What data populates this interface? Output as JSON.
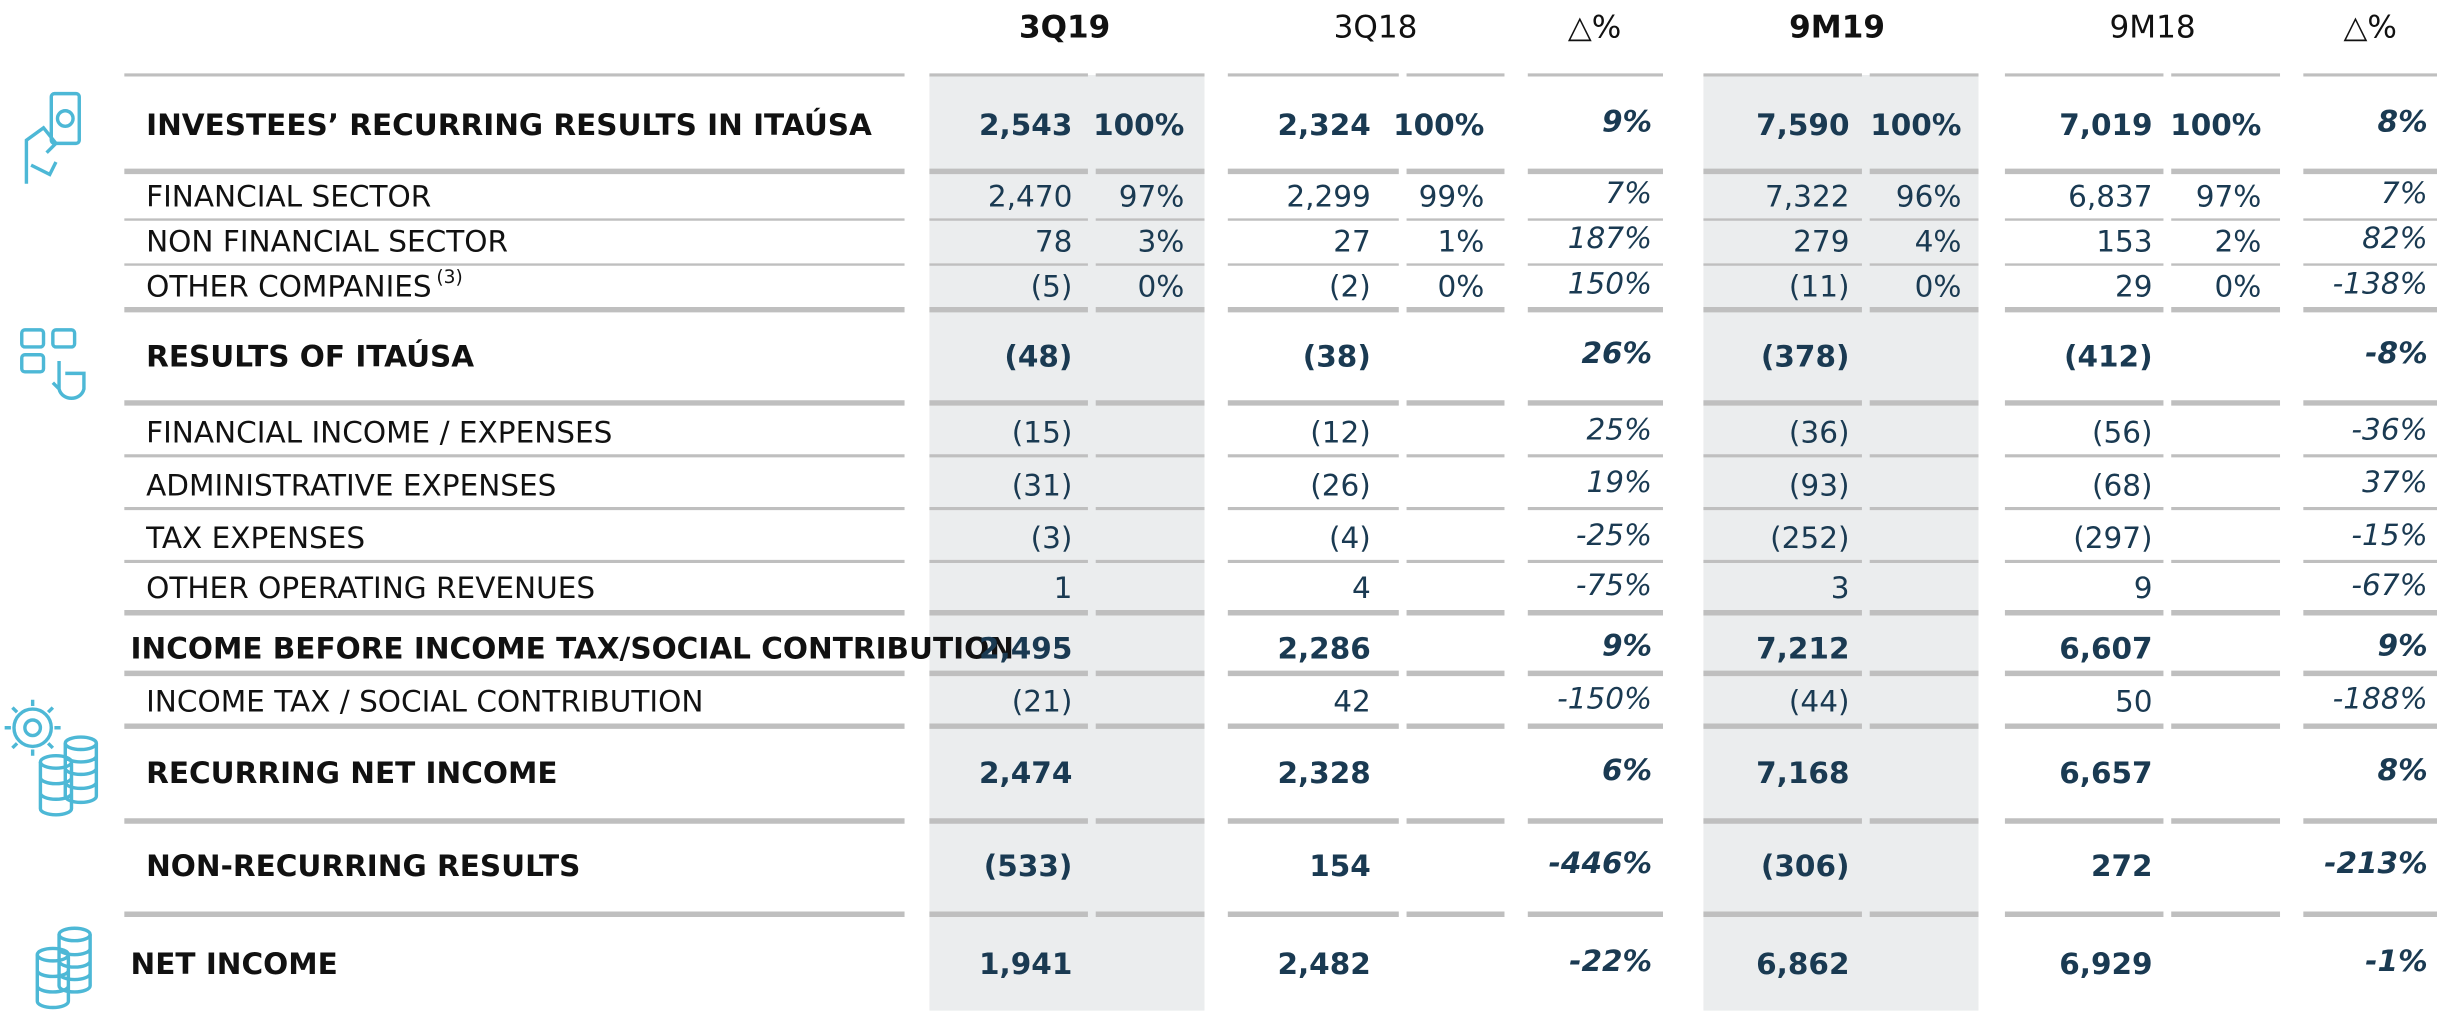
{
  "header": {
    "columns": [
      "3Q19",
      "3Q18",
      "△%",
      "9M19",
      "9M18",
      "△%"
    ]
  },
  "table": {
    "rows": [
      {
        "label": "INVESTEES’ RECURRING RESULTS IN ITAÚSA",
        "bold": true,
        "values": [
          "2,543",
          "100%",
          "2,324",
          "100%",
          "9%",
          "7,590",
          "100%",
          "7,019",
          "100%",
          "8%"
        ]
      },
      {
        "label": "FINANCIAL SECTOR",
        "bold": false,
        "values": [
          "2,470",
          "97%",
          "2,299",
          "99%",
          "7%",
          "7,322",
          "96%",
          "6,837",
          "97%",
          "7%"
        ]
      },
      {
        "label": "NON FINANCIAL SECTOR",
        "bold": false,
        "values": [
          "78",
          "3%",
          "27",
          "1%",
          "187%",
          "279",
          "4%",
          "153",
          "2%",
          "82%"
        ]
      },
      {
        "label": "OTHER COMPANIES",
        "note": "(3)",
        "bold": false,
        "values": [
          "(5)",
          "0%",
          "(2)",
          "0%",
          "150%",
          "(11)",
          "0%",
          "29",
          "0%",
          "-138%"
        ]
      },
      {
        "label": "RESULTS OF ITAÚSA",
        "bold": true,
        "values": [
          "(48)",
          null,
          "(38)",
          null,
          "26%",
          "(378)",
          null,
          "(412)",
          null,
          "-8%"
        ]
      },
      {
        "label": "FINANCIAL INCOME / EXPENSES",
        "bold": false,
        "values": [
          "(15)",
          null,
          "(12)",
          null,
          "25%",
          "(36)",
          null,
          "(56)",
          null,
          "-36%"
        ]
      },
      {
        "label": "ADMINISTRATIVE EXPENSES",
        "bold": false,
        "values": [
          "(31)",
          null,
          "(26)",
          null,
          "19%",
          "(93)",
          null,
          "(68)",
          null,
          "37%"
        ]
      },
      {
        "label": "TAX EXPENSES",
        "bold": false,
        "values": [
          "(3)",
          null,
          "(4)",
          null,
          "-25%",
          "(252)",
          null,
          "(297)",
          null,
          "-15%"
        ]
      },
      {
        "label": "OTHER OPERATING REVENUES",
        "bold": false,
        "values": [
          "1",
          null,
          "4",
          null,
          "-75%",
          "3",
          null,
          "9",
          null,
          "-67%"
        ]
      },
      {
        "label": "INCOME BEFORE INCOME TAX/SOCIAL CONTRIBUTION",
        "bold": true,
        "values": [
          "2,495",
          null,
          "2,286",
          null,
          "9%",
          "7,212",
          null,
          "6,607",
          null,
          "9%"
        ]
      },
      {
        "label": "INCOME TAX / SOCIAL CONTRIBUTION",
        "bold": false,
        "values": [
          "(21)",
          null,
          "42",
          null,
          "-150%",
          "(44)",
          null,
          "50",
          null,
          "-188%"
        ]
      },
      {
        "label": "RECURRING NET INCOME",
        "bold": true,
        "values": [
          "2,474",
          null,
          "2,328",
          null,
          "6%",
          "7,168",
          null,
          "6,657",
          null,
          "8%"
        ]
      },
      {
        "label": "NON-RECURRING RESULTS",
        "bold": true,
        "values": [
          "(533)",
          null,
          "154",
          null,
          "-446%",
          "(306)",
          null,
          "272",
          null,
          "-213%"
        ]
      },
      {
        "label": "NET INCOME",
        "bold": true,
        "values": [
          "1,941",
          null,
          "2,482",
          null,
          "-22%",
          "6,862",
          null,
          "6,929",
          null,
          "-1%"
        ]
      }
    ]
  }
}
